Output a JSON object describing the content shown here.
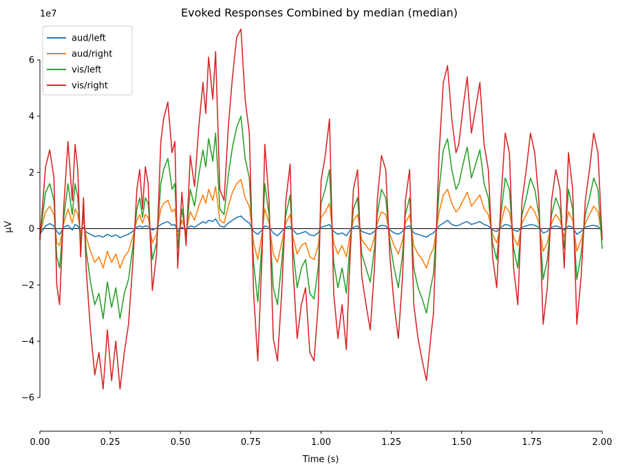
{
  "chart_data": {
    "type": "line",
    "title": "Evoked Responses Combined by median (median)",
    "xlabel": "Time (s)",
    "ylabel": "µV",
    "y_offset_label": "1e7",
    "xlim": [
      0.0,
      2.0
    ],
    "ylim": [
      -7.2,
      7.3
    ],
    "y_scale_factor": 10000000,
    "x_ticks": [
      0.0,
      0.25,
      0.5,
      0.75,
      1.0,
      1.25,
      1.5,
      1.75,
      2.0
    ],
    "x_tick_labels": [
      "0.00",
      "0.25",
      "0.50",
      "0.75",
      "1.00",
      "1.25",
      "1.50",
      "1.75",
      "2.00"
    ],
    "y_ticks": [
      -6,
      -4,
      -2,
      0,
      2,
      4,
      6
    ],
    "y_tick_labels": [
      "−6",
      "−4",
      "−2",
      "0",
      "2",
      "4",
      "6"
    ],
    "grid": false,
    "zero_line": true,
    "legend_position": "top-left",
    "series": [
      {
        "name": "aud/left",
        "color": "#1f77b4",
        "x": [
          0.0,
          0.02,
          0.035,
          0.05,
          0.06,
          0.07,
          0.085,
          0.1,
          0.115,
          0.125,
          0.135,
          0.145,
          0.155,
          0.165,
          0.18,
          0.195,
          0.21,
          0.225,
          0.24,
          0.255,
          0.27,
          0.285,
          0.3,
          0.315,
          0.33,
          0.345,
          0.355,
          0.365,
          0.375,
          0.385,
          0.4,
          0.415,
          0.43,
          0.44,
          0.455,
          0.47,
          0.48,
          0.49,
          0.505,
          0.52,
          0.535,
          0.55,
          0.565,
          0.58,
          0.59,
          0.6,
          0.615,
          0.625,
          0.64,
          0.655,
          0.67,
          0.685,
          0.7,
          0.715,
          0.73,
          0.745,
          0.76,
          0.775,
          0.79,
          0.8,
          0.815,
          0.83,
          0.845,
          0.86,
          0.875,
          0.89,
          0.9,
          0.915,
          0.93,
          0.945,
          0.96,
          0.975,
          0.99,
          1.0,
          1.015,
          1.03,
          1.045,
          1.06,
          1.075,
          1.09,
          1.1,
          1.115,
          1.13,
          1.145,
          1.16,
          1.175,
          1.19,
          1.2,
          1.215,
          1.23,
          1.245,
          1.26,
          1.275,
          1.29,
          1.3,
          1.315,
          1.33,
          1.345,
          1.36,
          1.375,
          1.39,
          1.4,
          1.42,
          1.435,
          1.45,
          1.465,
          1.48,
          1.49,
          1.505,
          1.52,
          1.535,
          1.55,
          1.565,
          1.58,
          1.595,
          1.61,
          1.625,
          1.64,
          1.655,
          1.67,
          1.685,
          1.7,
          1.715,
          1.73,
          1.745,
          1.76,
          1.775,
          1.79,
          1.805,
          1.82,
          1.835,
          1.85,
          1.865,
          1.88,
          1.895,
          1.91,
          1.925,
          1.94,
          1.955,
          1.97,
          1.985,
          2.0
        ],
        "values": [
          -0.2,
          0.1,
          0.18,
          0.1,
          -0.1,
          -0.2,
          0.05,
          0.12,
          -0.05,
          0.15,
          0.1,
          -0.1,
          0.05,
          -0.12,
          -0.2,
          -0.28,
          -0.25,
          -0.3,
          -0.2,
          -0.28,
          -0.22,
          -0.32,
          -0.25,
          -0.2,
          -0.1,
          0.05,
          0.1,
          0.05,
          0.1,
          0.08,
          -0.05,
          0.02,
          0.15,
          0.2,
          0.25,
          0.12,
          0.15,
          -0.1,
          0.05,
          -0.05,
          0.1,
          0.05,
          0.15,
          0.25,
          0.2,
          0.3,
          0.25,
          0.35,
          0.1,
          0.05,
          0.2,
          0.3,
          0.4,
          0.45,
          0.3,
          0.2,
          -0.1,
          -0.2,
          -0.05,
          0.1,
          0.05,
          -0.15,
          -0.25,
          -0.1,
          0.05,
          0.08,
          -0.05,
          -0.2,
          -0.15,
          -0.1,
          -0.22,
          -0.25,
          -0.15,
          0.05,
          0.1,
          0.15,
          -0.1,
          -0.2,
          -0.15,
          -0.25,
          -0.1,
          0.05,
          0.1,
          -0.1,
          -0.15,
          -0.2,
          -0.1,
          0.05,
          0.12,
          0.1,
          -0.05,
          -0.15,
          -0.2,
          -0.1,
          0.05,
          0.1,
          -0.15,
          -0.2,
          -0.25,
          -0.3,
          -0.2,
          -0.15,
          0.1,
          0.2,
          0.3,
          0.15,
          0.1,
          0.12,
          0.2,
          0.25,
          0.15,
          0.2,
          0.25,
          0.15,
          0.1,
          -0.05,
          -0.1,
          0.05,
          0.15,
          0.12,
          -0.05,
          -0.1,
          0.05,
          0.1,
          0.15,
          0.12,
          0.05,
          -0.15,
          -0.1,
          0.05,
          0.1,
          0.05,
          -0.05,
          0.1,
          0.05,
          -0.2,
          -0.1,
          0.05,
          0.1,
          0.12,
          0.08,
          -0.1
        ]
      },
      {
        "name": "aud/right",
        "color": "#ff7f0e",
        "x": [
          0.0,
          0.02,
          0.035,
          0.05,
          0.06,
          0.07,
          0.085,
          0.1,
          0.115,
          0.125,
          0.135,
          0.145,
          0.155,
          0.165,
          0.18,
          0.195,
          0.21,
          0.225,
          0.24,
          0.255,
          0.27,
          0.285,
          0.3,
          0.315,
          0.33,
          0.345,
          0.355,
          0.365,
          0.375,
          0.385,
          0.4,
          0.415,
          0.43,
          0.44,
          0.455,
          0.47,
          0.48,
          0.49,
          0.505,
          0.52,
          0.535,
          0.55,
          0.565,
          0.58,
          0.59,
          0.6,
          0.615,
          0.625,
          0.64,
          0.655,
          0.67,
          0.685,
          0.7,
          0.715,
          0.73,
          0.745,
          0.76,
          0.775,
          0.79,
          0.8,
          0.815,
          0.83,
          0.845,
          0.86,
          0.875,
          0.89,
          0.9,
          0.915,
          0.93,
          0.945,
          0.96,
          0.975,
          0.99,
          1.0,
          1.015,
          1.03,
          1.045,
          1.06,
          1.075,
          1.09,
          1.1,
          1.115,
          1.13,
          1.145,
          1.16,
          1.175,
          1.19,
          1.2,
          1.215,
          1.23,
          1.245,
          1.26,
          1.275,
          1.29,
          1.3,
          1.315,
          1.33,
          1.345,
          1.36,
          1.375,
          1.39,
          1.4,
          1.42,
          1.435,
          1.45,
          1.465,
          1.48,
          1.49,
          1.505,
          1.52,
          1.535,
          1.55,
          1.565,
          1.58,
          1.595,
          1.61,
          1.625,
          1.64,
          1.655,
          1.67,
          1.685,
          1.7,
          1.715,
          1.73,
          1.745,
          1.76,
          1.775,
          1.79,
          1.805,
          1.82,
          1.835,
          1.85,
          1.865,
          1.88,
          1.895,
          1.91,
          1.925,
          1.94,
          1.955,
          1.97,
          1.985,
          2.0
        ],
        "values": [
          -0.2,
          0.6,
          0.8,
          0.5,
          -0.5,
          -0.6,
          0.2,
          0.7,
          0.2,
          0.7,
          0.5,
          -0.2,
          0.3,
          -0.3,
          -0.8,
          -1.2,
          -1.0,
          -1.4,
          -0.8,
          -1.2,
          -0.9,
          -1.4,
          -1.0,
          -0.8,
          -0.3,
          0.3,
          0.5,
          0.2,
          0.5,
          0.4,
          -0.5,
          -0.2,
          0.7,
          0.9,
          1.0,
          0.6,
          0.7,
          -0.3,
          0.3,
          -0.1,
          0.6,
          0.3,
          0.8,
          1.2,
          0.9,
          1.4,
          1.0,
          1.5,
          0.3,
          0.2,
          0.8,
          1.3,
          1.6,
          1.75,
          1.1,
          0.8,
          -0.5,
          -1.1,
          -0.2,
          0.7,
          0.2,
          -0.9,
          -1.2,
          -0.5,
          0.2,
          0.5,
          -0.3,
          -0.9,
          -0.6,
          -0.5,
          -1.0,
          -1.1,
          -0.6,
          0.4,
          0.6,
          0.9,
          -0.5,
          -0.9,
          -0.6,
          -1.0,
          -0.4,
          0.3,
          0.5,
          -0.4,
          -0.6,
          -0.8,
          -0.3,
          0.2,
          0.6,
          0.5,
          -0.2,
          -0.6,
          -0.9,
          -0.4,
          0.2,
          0.5,
          -0.6,
          -0.9,
          -1.1,
          -1.4,
          -0.9,
          -0.7,
          0.6,
          1.2,
          1.4,
          0.9,
          0.6,
          0.7,
          1.0,
          1.3,
          0.8,
          1.0,
          1.2,
          0.7,
          0.5,
          -0.2,
          -0.5,
          0.2,
          0.8,
          0.6,
          -0.3,
          -0.6,
          0.2,
          0.5,
          0.8,
          0.6,
          0.2,
          -0.8,
          -0.5,
          0.2,
          0.5,
          0.3,
          -0.3,
          0.6,
          0.3,
          -0.8,
          -0.4,
          0.2,
          0.5,
          0.8,
          0.6,
          -0.3
        ]
      },
      {
        "name": "vis/left",
        "color": "#2ca02c",
        "x": [
          0.0,
          0.02,
          0.035,
          0.05,
          0.06,
          0.07,
          0.085,
          0.1,
          0.115,
          0.125,
          0.135,
          0.145,
          0.155,
          0.165,
          0.18,
          0.195,
          0.21,
          0.225,
          0.24,
          0.255,
          0.27,
          0.285,
          0.3,
          0.315,
          0.33,
          0.345,
          0.355,
          0.365,
          0.375,
          0.385,
          0.4,
          0.415,
          0.43,
          0.44,
          0.455,
          0.47,
          0.48,
          0.49,
          0.505,
          0.52,
          0.535,
          0.55,
          0.565,
          0.58,
          0.59,
          0.6,
          0.615,
          0.625,
          0.64,
          0.655,
          0.67,
          0.685,
          0.7,
          0.715,
          0.73,
          0.745,
          0.76,
          0.775,
          0.79,
          0.8,
          0.815,
          0.83,
          0.845,
          0.86,
          0.875,
          0.89,
          0.9,
          0.915,
          0.93,
          0.945,
          0.96,
          0.975,
          0.99,
          1.0,
          1.015,
          1.03,
          1.045,
          1.06,
          1.075,
          1.09,
          1.1,
          1.115,
          1.13,
          1.145,
          1.16,
          1.175,
          1.19,
          1.2,
          1.215,
          1.23,
          1.245,
          1.26,
          1.275,
          1.29,
          1.3,
          1.315,
          1.33,
          1.345,
          1.36,
          1.375,
          1.39,
          1.4,
          1.42,
          1.435,
          1.45,
          1.465,
          1.48,
          1.49,
          1.505,
          1.52,
          1.535,
          1.55,
          1.565,
          1.58,
          1.595,
          1.61,
          1.625,
          1.64,
          1.655,
          1.67,
          1.685,
          1.7,
          1.715,
          1.73,
          1.745,
          1.76,
          1.775,
          1.79,
          1.805,
          1.82,
          1.835,
          1.85,
          1.865,
          1.88,
          1.895,
          1.91,
          1.925,
          1.94,
          1.955,
          1.97,
          1.985,
          2.0
        ],
        "values": [
          -0.3,
          1.3,
          1.6,
          1.0,
          -1.0,
          -1.4,
          0.4,
          1.6,
          0.5,
          1.6,
          1.1,
          -0.5,
          0.6,
          -0.8,
          -1.9,
          -2.7,
          -2.3,
          -3.2,
          -1.9,
          -2.8,
          -2.1,
          -3.2,
          -2.3,
          -1.8,
          -0.7,
          0.7,
          1.1,
          0.4,
          1.1,
          0.9,
          -1.1,
          -0.5,
          1.6,
          2.1,
          2.5,
          1.4,
          1.6,
          -0.7,
          0.7,
          -0.3,
          1.4,
          0.8,
          1.9,
          2.8,
          2.2,
          3.2,
          2.4,
          3.4,
          0.7,
          0.5,
          1.9,
          2.9,
          3.6,
          4.0,
          2.5,
          1.8,
          -1.2,
          -2.6,
          -0.5,
          1.6,
          0.5,
          -2.1,
          -2.7,
          -1.2,
          0.5,
          1.2,
          -0.7,
          -2.1,
          -1.4,
          -1.1,
          -2.3,
          -2.5,
          -1.4,
          0.9,
          1.4,
          2.1,
          -1.2,
          -2.1,
          -1.4,
          -2.3,
          -0.9,
          0.7,
          1.1,
          -0.9,
          -1.4,
          -1.9,
          -0.7,
          0.5,
          1.4,
          1.1,
          -0.5,
          -1.4,
          -2.1,
          -0.9,
          0.5,
          1.1,
          -1.4,
          -2.1,
          -2.5,
          -3.0,
          -2.1,
          -1.6,
          1.4,
          2.8,
          3.2,
          2.1,
          1.4,
          1.6,
          2.3,
          2.9,
          1.8,
          2.3,
          2.8,
          1.6,
          1.1,
          -0.5,
          -1.1,
          0.5,
          1.8,
          1.4,
          -0.7,
          -1.4,
          0.5,
          1.1,
          1.8,
          1.4,
          0.5,
          -1.8,
          -1.1,
          0.5,
          1.1,
          0.7,
          -0.7,
          1.4,
          0.7,
          -1.8,
          -0.9,
          0.5,
          1.1,
          1.8,
          1.4,
          -0.7
        ]
      },
      {
        "name": "vis/right",
        "color": "#d62728",
        "x": [
          0.0,
          0.02,
          0.035,
          0.05,
          0.06,
          0.07,
          0.085,
          0.1,
          0.115,
          0.125,
          0.135,
          0.145,
          0.155,
          0.165,
          0.18,
          0.195,
          0.21,
          0.225,
          0.24,
          0.255,
          0.27,
          0.285,
          0.3,
          0.315,
          0.33,
          0.345,
          0.355,
          0.365,
          0.375,
          0.385,
          0.4,
          0.415,
          0.43,
          0.44,
          0.455,
          0.47,
          0.48,
          0.49,
          0.505,
          0.52,
          0.535,
          0.55,
          0.565,
          0.58,
          0.59,
          0.6,
          0.615,
          0.625,
          0.64,
          0.655,
          0.67,
          0.685,
          0.7,
          0.715,
          0.73,
          0.745,
          0.76,
          0.775,
          0.79,
          0.8,
          0.815,
          0.83,
          0.845,
          0.86,
          0.875,
          0.89,
          0.9,
          0.915,
          0.93,
          0.945,
          0.96,
          0.975,
          0.99,
          1.0,
          1.015,
          1.03,
          1.045,
          1.06,
          1.075,
          1.09,
          1.1,
          1.115,
          1.13,
          1.145,
          1.16,
          1.175,
          1.19,
          1.2,
          1.215,
          1.23,
          1.245,
          1.26,
          1.275,
          1.29,
          1.3,
          1.315,
          1.33,
          1.345,
          1.36,
          1.375,
          1.39,
          1.4,
          1.42,
          1.435,
          1.45,
          1.465,
          1.48,
          1.49,
          1.505,
          1.52,
          1.535,
          1.55,
          1.565,
          1.58,
          1.595,
          1.61,
          1.625,
          1.64,
          1.655,
          1.67,
          1.685,
          1.7,
          1.715,
          1.73,
          1.745,
          1.76,
          1.775,
          1.79,
          1.805,
          1.82,
          1.835,
          1.85,
          1.865,
          1.88,
          1.895,
          1.91,
          1.925,
          1.94,
          1.955,
          1.97,
          1.985,
          2.0
        ],
        "values": [
          -0.4,
          2.2,
          2.8,
          1.8,
          -2.0,
          -2.7,
          0.8,
          3.1,
          1.0,
          3.0,
          2.1,
          -1.0,
          1.1,
          -1.5,
          -3.6,
          -5.2,
          -4.4,
          -5.7,
          -3.6,
          -5.4,
          -4.0,
          -5.7,
          -4.4,
          -3.4,
          -1.3,
          1.4,
          2.1,
          0.7,
          2.2,
          1.6,
          -2.2,
          -0.9,
          3.1,
          3.9,
          4.5,
          2.7,
          3.1,
          -1.4,
          1.3,
          -0.6,
          2.6,
          1.5,
          3.6,
          5.2,
          4.1,
          6.1,
          4.6,
          6.3,
          1.4,
          1.0,
          3.6,
          5.4,
          6.8,
          7.1,
          4.6,
          3.4,
          -2.3,
          -4.7,
          -1.0,
          3.0,
          1.0,
          -3.9,
          -4.7,
          -2.3,
          1.0,
          2.3,
          -1.4,
          -3.9,
          -2.7,
          -2.1,
          -4.4,
          -4.7,
          -2.7,
          1.7,
          2.6,
          3.9,
          -2.3,
          -3.9,
          -2.7,
          -4.3,
          -1.7,
          1.4,
          2.1,
          -1.7,
          -2.7,
          -3.6,
          -1.4,
          1.0,
          2.6,
          2.1,
          -1.0,
          -2.7,
          -3.9,
          -1.7,
          1.0,
          2.1,
          -2.7,
          -3.9,
          -4.7,
          -5.4,
          -3.9,
          -3.0,
          2.7,
          5.2,
          5.8,
          3.9,
          2.7,
          3.0,
          4.3,
          5.4,
          3.4,
          4.3,
          5.2,
          3.0,
          2.1,
          -1.0,
          -2.1,
          1.0,
          3.4,
          2.7,
          -1.4,
          -2.7,
          1.0,
          2.1,
          3.4,
          2.7,
          1.0,
          -3.4,
          -2.1,
          1.0,
          2.1,
          1.4,
          -1.4,
          2.7,
          1.4,
          -3.4,
          -1.7,
          1.0,
          2.1,
          3.4,
          2.7,
          -0.4
        ]
      }
    ]
  }
}
